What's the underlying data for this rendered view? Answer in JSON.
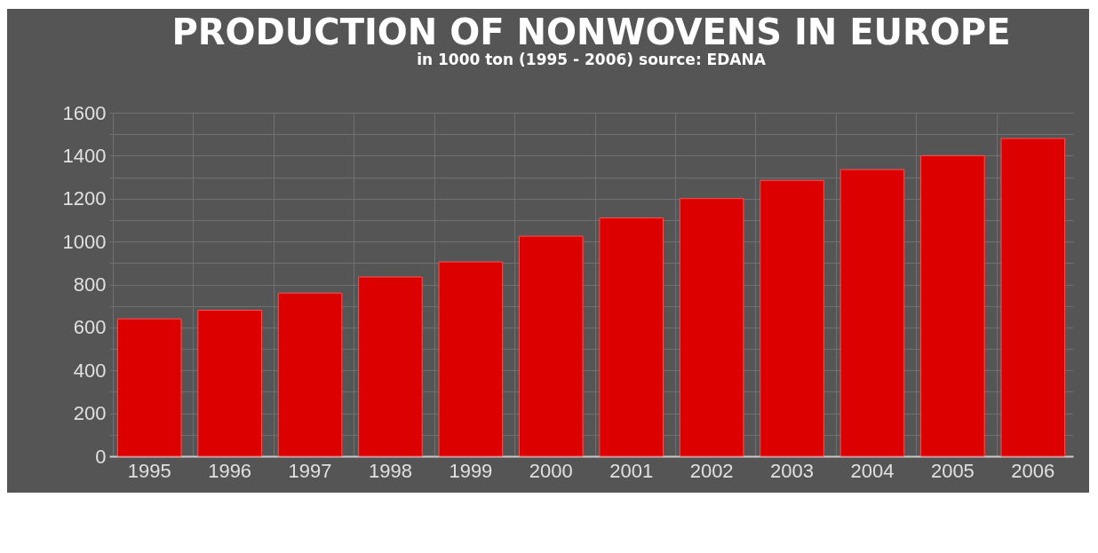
{
  "chart_data": {
    "type": "bar",
    "title": "PRODUCTION OF NONWOVENS IN EUROPE",
    "subtitle": "in 1000 ton (1995 - 2006) source: EDANA",
    "categories": [
      "1995",
      "1996",
      "1997",
      "1998",
      "1999",
      "2000",
      "2001",
      "2002",
      "2003",
      "2004",
      "2005",
      "2006"
    ],
    "values": [
      640,
      680,
      760,
      835,
      905,
      1025,
      1110,
      1200,
      1285,
      1335,
      1400,
      1480
    ],
    "color": "#dd0000",
    "ylim": [
      0,
      1600
    ],
    "yticks": [
      0,
      {
        "value": 100,
        "label": null
      },
      200,
      {
        "value": 300,
        "label": null
      },
      400,
      {
        "value": 500,
        "label": null
      },
      600,
      {
        "value": 700,
        "label": null
      },
      800,
      {
        "value": 900,
        "label": null
      },
      1000,
      {
        "value": 1100,
        "label": null
      },
      1200,
      {
        "value": 1300,
        "label": null
      },
      1400,
      {
        "value": 1500,
        "label": null
      },
      1600
    ],
    "grid": true
  }
}
